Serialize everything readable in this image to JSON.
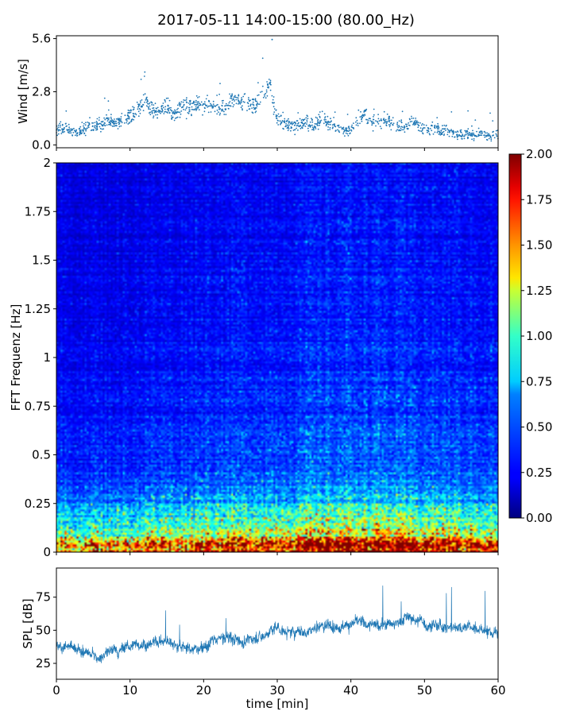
{
  "figure": {
    "title": "2017-05-11 14:00-15:00 (80.00_Hz)"
  },
  "chart_data": [
    {
      "type": "scatter",
      "ylabel": "Wind [m/s]",
      "xlabel": "",
      "xlim": [
        0,
        60
      ],
      "ylim": [
        -0.15,
        5.75
      ],
      "yticks": [
        0.0,
        2.8,
        5.6
      ],
      "ytick_labels": [
        "0.0",
        "2.8",
        "5.6"
      ],
      "color": "#1f77b4",
      "series": [
        {
          "x": [
            0,
            1,
            2,
            3,
            4,
            5,
            6,
            7,
            8,
            9,
            10,
            11,
            12,
            13,
            14,
            15,
            16,
            17,
            18,
            19,
            20,
            21,
            22,
            23,
            24,
            25,
            26,
            27,
            28,
            29,
            30,
            31,
            32,
            33,
            34,
            35,
            36,
            37,
            38,
            39,
            40,
            41,
            42,
            43,
            44,
            45,
            46,
            47,
            48,
            49,
            50,
            51,
            52,
            53,
            54,
            55,
            56,
            57,
            58,
            59,
            60
          ],
          "y": [
            0.8,
            0.9,
            0.7,
            0.6,
            0.9,
            1.0,
            1.1,
            1.2,
            1.1,
            1.3,
            1.5,
            1.8,
            2.4,
            1.9,
            1.7,
            2.1,
            1.6,
            2.0,
            1.9,
            2.2,
            2.0,
            2.1,
            1.9,
            2.0,
            2.4,
            2.2,
            2.3,
            2.0,
            2.6,
            3.1,
            1.3,
            1.1,
            1.0,
            1.1,
            1.2,
            1.0,
            1.4,
            1.2,
            0.9,
            0.7,
            0.8,
            1.3,
            1.6,
            1.2,
            1.1,
            1.3,
            1.0,
            0.9,
            1.2,
            1.1,
            0.8,
            0.9,
            0.7,
            0.8,
            0.6,
            0.5,
            0.6,
            0.5,
            0.6,
            0.4,
            0.7
          ]
        }
      ]
    },
    {
      "type": "heatmap",
      "ylabel": "FFT Frequenz [Hz]",
      "xlabel": "",
      "xlim": [
        0,
        60
      ],
      "ylim": [
        0,
        2
      ],
      "yticks": [
        0,
        0.25,
        0.5,
        0.75,
        1,
        1.25,
        1.5,
        1.75,
        2
      ],
      "ytick_labels": [
        "0",
        "0.25",
        "0.5",
        "0.75",
        "1",
        "1.25",
        "1.5",
        "1.75",
        "2"
      ],
      "colormap": "jet",
      "colorbar": {
        "range": [
          0.0,
          2.0
        ],
        "ticks": [
          0.0,
          0.25,
          0.5,
          0.75,
          1.0,
          1.25,
          1.5,
          1.75,
          2.0
        ],
        "tick_labels": [
          "0.00",
          "0.25",
          "0.50",
          "0.75",
          "1.00",
          "1.25",
          "1.50",
          "1.75",
          "2.00"
        ]
      },
      "frequency_profile": {
        "freq": [
          0.0,
          0.05,
          0.1,
          0.2,
          0.3,
          0.5,
          0.75,
          1.0,
          1.5,
          2.0
        ],
        "value": [
          1.85,
          1.5,
          1.05,
          0.72,
          0.52,
          0.36,
          0.31,
          0.28,
          0.25,
          0.22
        ]
      },
      "time_modulation": {
        "t": [
          0,
          10,
          20,
          30,
          40,
          50,
          60
        ],
        "factor": [
          0.8,
          0.85,
          1.0,
          1.05,
          1.2,
          1.1,
          1.0
        ]
      }
    },
    {
      "type": "line",
      "ylabel": "SPL [dB]",
      "xlabel": "time [min]",
      "xlim": [
        0,
        60
      ],
      "ylim": [
        13,
        97
      ],
      "yticks": [
        25,
        50,
        75
      ],
      "ytick_labels": [
        "25",
        "50",
        "75"
      ],
      "xticks": [
        0,
        10,
        20,
        30,
        40,
        50,
        60
      ],
      "xtick_labels": [
        "0",
        "10",
        "20",
        "30",
        "40",
        "50",
        "60"
      ],
      "color": "#1f77b4",
      "series": [
        {
          "x": [
            0,
            2,
            4,
            6,
            8,
            10,
            12,
            14,
            16,
            18,
            20,
            22,
            24,
            26,
            28,
            30,
            32,
            34,
            36,
            38,
            40,
            42,
            44,
            46,
            48,
            50,
            52,
            54,
            56,
            58,
            60
          ],
          "y": [
            38,
            36,
            32,
            30,
            35,
            38,
            40,
            41,
            42,
            36,
            38,
            43,
            45,
            42,
            46,
            52,
            48,
            50,
            54,
            53,
            55,
            55,
            54,
            56,
            60,
            55,
            53,
            52,
            53,
            50,
            47
          ]
        }
      ]
    }
  ]
}
